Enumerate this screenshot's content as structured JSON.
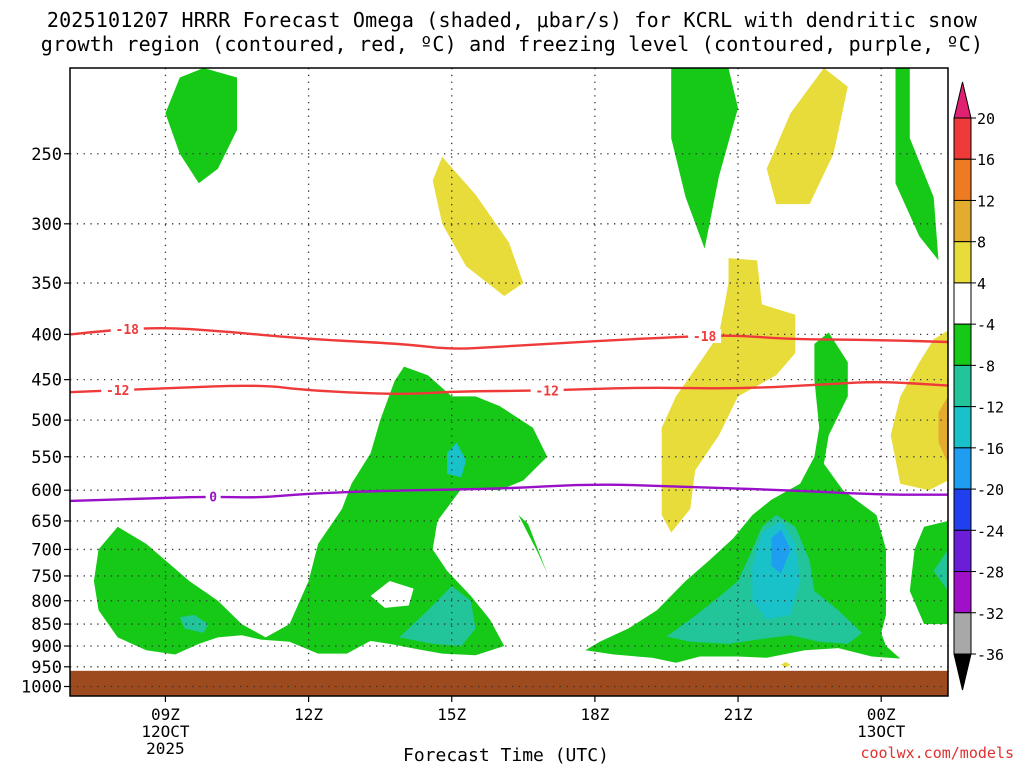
{
  "chart_data": {
    "type": "heatmap",
    "title_line1": "2025101207 HRRR Forecast Omega (shaded, μbar/s) for KCRL with dendritic snow",
    "title_line2": "growth region (contoured, red, ºC) and freezing level (contoured, purple, ºC)",
    "xlabel": "Forecast Time (UTC)",
    "credit": "coolwx.com/models",
    "y_axis": {
      "scale": "pressure (inverted)",
      "ticks": [
        250,
        300,
        350,
        400,
        450,
        500,
        550,
        600,
        650,
        700,
        750,
        800,
        850,
        900,
        950,
        1000
      ],
      "range": [
        200,
        1025
      ]
    },
    "x_axis": {
      "range_hours": [
        7,
        25.4
      ],
      "ticks": [
        {
          "hour": 9,
          "lines": [
            "09Z",
            "12OCT",
            "2025"
          ]
        },
        {
          "hour": 12,
          "lines": [
            "12Z"
          ]
        },
        {
          "hour": 15,
          "lines": [
            "15Z"
          ]
        },
        {
          "hour": 18,
          "lines": [
            "18Z"
          ]
        },
        {
          "hour": 21,
          "lines": [
            "21Z"
          ]
        },
        {
          "hour": 24,
          "lines": [
            "00Z",
            "13OCT"
          ]
        }
      ]
    },
    "grid": true,
    "colorbar": {
      "position": "right",
      "levels": [
        20,
        16,
        12,
        8,
        4,
        -4,
        -8,
        -12,
        -16,
        -20,
        -24,
        -28,
        -32,
        -36
      ],
      "colors": [
        "#e02070",
        "#ef3a3a",
        "#ee7b22",
        "#e3ac2e",
        "#e8dc3a",
        "#ffffff",
        "#16c916",
        "#22c49a",
        "#19c1c8",
        "#1e9ef0",
        "#2040f0",
        "#6a1ed8",
        "#a010c8",
        "#a8a8a8",
        "#000000"
      ]
    },
    "contours": [
      {
        "label": "-18",
        "color": "#ef3a3a",
        "points": [
          [
            7,
            400
          ],
          [
            8,
            395
          ],
          [
            9,
            393
          ],
          [
            10,
            396
          ],
          [
            12,
            405
          ],
          [
            14,
            410
          ],
          [
            15,
            416
          ],
          [
            16,
            413
          ],
          [
            18,
            407
          ],
          [
            20,
            402
          ],
          [
            21,
            401
          ],
          [
            22,
            405
          ],
          [
            24,
            406
          ],
          [
            25.4,
            408
          ]
        ]
      },
      {
        "label": "-12",
        "color": "#ef3a3a",
        "points": [
          [
            7,
            465
          ],
          [
            9,
            460
          ],
          [
            11,
            456
          ],
          [
            12,
            463
          ],
          [
            14,
            468
          ],
          [
            15,
            464
          ],
          [
            17,
            463
          ],
          [
            19,
            459
          ],
          [
            21,
            461
          ],
          [
            23,
            455
          ],
          [
            24,
            452
          ],
          [
            25.4,
            457
          ]
        ]
      },
      {
        "label": "0",
        "color": "#9a10c8",
        "points": [
          [
            7,
            617
          ],
          [
            9,
            612
          ],
          [
            10,
            610
          ],
          [
            11,
            612
          ],
          [
            12,
            605
          ],
          [
            14,
            600
          ],
          [
            16,
            598
          ],
          [
            18,
            590
          ],
          [
            20,
            595
          ],
          [
            22,
            600
          ],
          [
            24,
            607
          ],
          [
            25.4,
            607
          ]
        ]
      }
    ],
    "shaded_regions": [
      {
        "color": "#16c916",
        "points": [
          [
            9.8,
            200
          ],
          [
            10.5,
            205
          ],
          [
            10.5,
            235
          ],
          [
            10.1,
            260
          ],
          [
            9.7,
            270
          ],
          [
            9.3,
            250
          ],
          [
            9,
            225
          ],
          [
            9.3,
            205
          ]
        ]
      },
      {
        "color": "#e8dc3a",
        "points": [
          [
            14.8,
            252
          ],
          [
            15.5,
            278
          ],
          [
            16.2,
            315
          ],
          [
            16.5,
            350
          ],
          [
            16.1,
            362
          ],
          [
            15.3,
            335
          ],
          [
            14.8,
            300
          ],
          [
            14.6,
            268
          ]
        ]
      },
      {
        "color": "#16c916",
        "points": [
          [
            16.8,
            705
          ],
          [
            17,
            745
          ],
          [
            16.6,
            655
          ],
          [
            16.4,
            640
          ]
        ]
      },
      {
        "color": "#16c916",
        "points": [
          [
            14,
            435
          ],
          [
            14.5,
            445
          ],
          [
            15,
            470
          ],
          [
            15.5,
            470
          ],
          [
            16,
            482
          ],
          [
            16.7,
            510
          ],
          [
            17,
            550
          ],
          [
            16.5,
            585
          ],
          [
            16,
            600
          ],
          [
            15.2,
            598
          ],
          [
            14.7,
            650
          ],
          [
            14.6,
            700
          ],
          [
            14.9,
            740
          ],
          [
            15.4,
            790
          ],
          [
            15.8,
            840
          ],
          [
            16.1,
            900
          ],
          [
            15.5,
            922
          ],
          [
            14.8,
            918
          ],
          [
            14.3,
            908
          ],
          [
            13.8,
            897
          ],
          [
            13.3,
            888
          ],
          [
            12.8,
            918
          ],
          [
            12.2,
            918
          ],
          [
            11.6,
            890
          ],
          [
            11,
            885
          ],
          [
            10.6,
            875
          ],
          [
            10.1,
            880
          ],
          [
            9.7,
            895
          ],
          [
            9.2,
            920
          ],
          [
            8.6,
            910
          ],
          [
            8,
            880
          ],
          [
            7.6,
            820
          ],
          [
            7.5,
            760
          ],
          [
            7.6,
            700
          ],
          [
            8,
            660
          ],
          [
            8.6,
            690
          ],
          [
            9.5,
            760
          ],
          [
            10.1,
            800
          ],
          [
            10.6,
            850
          ],
          [
            11.1,
            880
          ],
          [
            11.6,
            850
          ],
          [
            12,
            760
          ],
          [
            12.2,
            690
          ],
          [
            12.7,
            630
          ],
          [
            12.9,
            590
          ],
          [
            13.3,
            545
          ],
          [
            13.5,
            500
          ],
          [
            13.8,
            452
          ]
        ]
      },
      {
        "color": "#22c49a",
        "points": [
          [
            15,
            770
          ],
          [
            15.4,
            800
          ],
          [
            15.5,
            860
          ],
          [
            15.2,
            900
          ],
          [
            14.6,
            895
          ],
          [
            13.9,
            880
          ],
          [
            14.5,
            820
          ]
        ]
      },
      {
        "color": "#22c49a",
        "points": [
          [
            9.6,
            830
          ],
          [
            9.9,
            850
          ],
          [
            9.8,
            870
          ],
          [
            9.4,
            860
          ],
          [
            9.3,
            835
          ]
        ]
      },
      {
        "color": "#19c1c8",
        "points": [
          [
            15.1,
            530
          ],
          [
            15.3,
            555
          ],
          [
            15.2,
            580
          ],
          [
            14.9,
            575
          ],
          [
            14.9,
            545
          ]
        ]
      },
      {
        "color": "#ffffff",
        "points": [
          [
            13.7,
            760
          ],
          [
            14.2,
            775
          ],
          [
            14.1,
            810
          ],
          [
            13.6,
            815
          ],
          [
            13.3,
            790
          ]
        ]
      },
      {
        "color": "#16c916",
        "points": [
          [
            20.4,
            200
          ],
          [
            20.8,
            200
          ],
          [
            21,
            222
          ],
          [
            20.6,
            265
          ],
          [
            20.3,
            320
          ],
          [
            19.9,
            280
          ],
          [
            19.6,
            240
          ],
          [
            19.6,
            200
          ]
        ]
      },
      {
        "color": "#e8dc3a",
        "points": [
          [
            22.8,
            200
          ],
          [
            23.3,
            210
          ],
          [
            23,
            250
          ],
          [
            22.5,
            285
          ],
          [
            21.8,
            285
          ],
          [
            21.6,
            260
          ],
          [
            22.1,
            225
          ]
        ]
      },
      {
        "color": "#16c916",
        "points": [
          [
            24.3,
            200
          ],
          [
            24.6,
            200
          ],
          [
            24.6,
            240
          ],
          [
            25.1,
            280
          ],
          [
            25.2,
            330
          ],
          [
            24.8,
            310
          ],
          [
            24.3,
            270
          ]
        ]
      },
      {
        "color": "#e8dc3a",
        "points": [
          [
            20.8,
            328
          ],
          [
            21.4,
            330
          ],
          [
            21.5,
            370
          ],
          [
            22.2,
            380
          ],
          [
            22.2,
            420
          ],
          [
            21.8,
            445
          ],
          [
            21,
            470
          ],
          [
            20.6,
            520
          ],
          [
            20.1,
            570
          ],
          [
            20,
            630
          ],
          [
            19.6,
            670
          ],
          [
            19.4,
            640
          ],
          [
            19.4,
            510
          ],
          [
            19.7,
            470
          ],
          [
            20.2,
            430
          ],
          [
            20.6,
            400
          ],
          [
            20.8,
            350
          ]
        ]
      },
      {
        "color": "#16c916",
        "points": [
          [
            22.9,
            398
          ],
          [
            23.3,
            430
          ],
          [
            23.3,
            470
          ],
          [
            22.9,
            520
          ],
          [
            22.8,
            560
          ],
          [
            23.2,
            600
          ],
          [
            23.9,
            640
          ],
          [
            24.1,
            700
          ],
          [
            24.1,
            830
          ],
          [
            24,
            870
          ],
          [
            24.1,
            900
          ],
          [
            24.4,
            930
          ],
          [
            23.8,
            925
          ],
          [
            23.1,
            905
          ],
          [
            22.4,
            910
          ],
          [
            21.6,
            928
          ],
          [
            21,
            925
          ],
          [
            20.2,
            925
          ],
          [
            19.7,
            940
          ],
          [
            19.2,
            928
          ],
          [
            18.4,
            920
          ],
          [
            17.8,
            910
          ],
          [
            18.1,
            890
          ],
          [
            18.7,
            860
          ],
          [
            19.3,
            820
          ],
          [
            19.9,
            760
          ],
          [
            20.4,
            720
          ],
          [
            20.9,
            680
          ],
          [
            21.3,
            640
          ],
          [
            21.7,
            615
          ],
          [
            22.3,
            590
          ],
          [
            22.6,
            550
          ],
          [
            22.7,
            510
          ],
          [
            22.6,
            450
          ],
          [
            22.6,
            410
          ]
        ]
      },
      {
        "color": "#22c49a",
        "points": [
          [
            21.8,
            640
          ],
          [
            22.2,
            660
          ],
          [
            22.5,
            720
          ],
          [
            22.6,
            780
          ],
          [
            23.1,
            820
          ],
          [
            23.6,
            870
          ],
          [
            23.3,
            895
          ],
          [
            22.7,
            890
          ],
          [
            22.1,
            875
          ],
          [
            21.4,
            885
          ],
          [
            20.8,
            895
          ],
          [
            20,
            890
          ],
          [
            19.5,
            878
          ],
          [
            20,
            840
          ],
          [
            20.5,
            800
          ],
          [
            21,
            760
          ],
          [
            21.3,
            700
          ],
          [
            21.5,
            660
          ]
        ]
      },
      {
        "color": "#19c1c8",
        "points": [
          [
            21.9,
            650
          ],
          [
            22.2,
            690
          ],
          [
            22.3,
            760
          ],
          [
            22.1,
            830
          ],
          [
            21.6,
            840
          ],
          [
            21.3,
            800
          ],
          [
            21.3,
            730
          ],
          [
            21.5,
            670
          ]
        ]
      },
      {
        "color": "#1e9ef0",
        "points": [
          [
            21.9,
            665
          ],
          [
            22.1,
            700
          ],
          [
            21.9,
            745
          ],
          [
            21.7,
            730
          ],
          [
            21.7,
            680
          ]
        ]
      },
      {
        "color": "#e8dc3a",
        "points": [
          [
            25.4,
            396
          ],
          [
            25.4,
            585
          ],
          [
            25,
            600
          ],
          [
            24.4,
            590
          ],
          [
            24.2,
            520
          ],
          [
            24.4,
            470
          ],
          [
            24.8,
            430
          ],
          [
            25.1,
            405
          ]
        ]
      },
      {
        "color": "#e3ac2e",
        "points": [
          [
            25.4,
            470
          ],
          [
            25.4,
            560
          ],
          [
            25.2,
            530
          ],
          [
            25.2,
            490
          ]
        ]
      },
      {
        "color": "#16c916",
        "points": [
          [
            25.4,
            650
          ],
          [
            25.4,
            850
          ],
          [
            24.9,
            850
          ],
          [
            24.6,
            780
          ],
          [
            24.7,
            700
          ],
          [
            24.9,
            660
          ]
        ]
      },
      {
        "color": "#22c49a",
        "points": [
          [
            25.4,
            700
          ],
          [
            25.4,
            780
          ],
          [
            25.1,
            740
          ]
        ]
      },
      {
        "color": "#e8dc3a",
        "points": [
          [
            22,
            938
          ],
          [
            22.1,
            945
          ],
          [
            22,
            952
          ],
          [
            21.9,
            945
          ]
        ]
      }
    ],
    "ground": {
      "color": "#9c4a1e",
      "from_pressure": 960
    }
  }
}
